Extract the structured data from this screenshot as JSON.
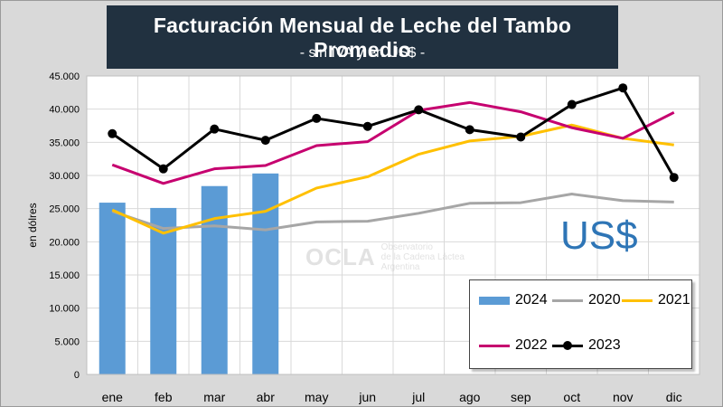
{
  "header": {
    "title": "Facturación Mensual de Leche del Tambo Promedio",
    "subtitle": "- sin IVA y en US$ -"
  },
  "currency_label": "US$",
  "watermark": {
    "logo": "OCLA",
    "line1": "Observatorio",
    "line2": "de la Cadena Láctea",
    "line3": "Argentina"
  },
  "colors": {
    "s2024": "#5b9bd5",
    "s2020": "#a6a6a6",
    "s2021": "#ffc000",
    "s2022": "#c6006f",
    "s2023": "#000000"
  },
  "chart_data": {
    "type": "bar+line",
    "title": "Facturación Mensual de Leche del Tambo Promedio",
    "subtitle": "- sin IVA y en US$ -",
    "xlabel": "",
    "ylabel": "en dólres",
    "ylim": [
      0,
      45000
    ],
    "yticks": [
      "0",
      "5.000",
      "10.000",
      "15.000",
      "20.000",
      "25.000",
      "30.000",
      "35.000",
      "40.000",
      "45.000"
    ],
    "ytick_values": [
      0,
      5000,
      10000,
      15000,
      20000,
      25000,
      30000,
      35000,
      40000,
      45000
    ],
    "categories": [
      "ene",
      "feb",
      "mar",
      "abr",
      "may",
      "jun",
      "jul",
      "ago",
      "sep",
      "oct",
      "nov",
      "dic"
    ],
    "grid": true,
    "legend_position": "bottom-right",
    "bars": {
      "name": "2024",
      "values": [
        25900,
        25100,
        28400,
        30300,
        null,
        null,
        null,
        null,
        null,
        null,
        null,
        null
      ]
    },
    "series": [
      {
        "name": "2020",
        "values": [
          24600,
          22000,
          22400,
          21800,
          23000,
          23100,
          24300,
          25800,
          25900,
          27200,
          26200,
          26000
        ]
      },
      {
        "name": "2021",
        "values": [
          24800,
          21300,
          23500,
          24600,
          28100,
          29800,
          33200,
          35200,
          35900,
          37600,
          35600,
          34600
        ]
      },
      {
        "name": "2022",
        "values": [
          31600,
          28800,
          31000,
          31500,
          34500,
          35100,
          39800,
          41000,
          39600,
          37200,
          35600,
          39500
        ]
      },
      {
        "name": "2023",
        "values": [
          36300,
          31000,
          37000,
          35300,
          38600,
          37400,
          39900,
          36900,
          35800,
          40700,
          43200,
          29700
        ]
      }
    ],
    "legend": [
      "2024",
      "2020",
      "2021",
      "2022",
      "2023"
    ]
  }
}
